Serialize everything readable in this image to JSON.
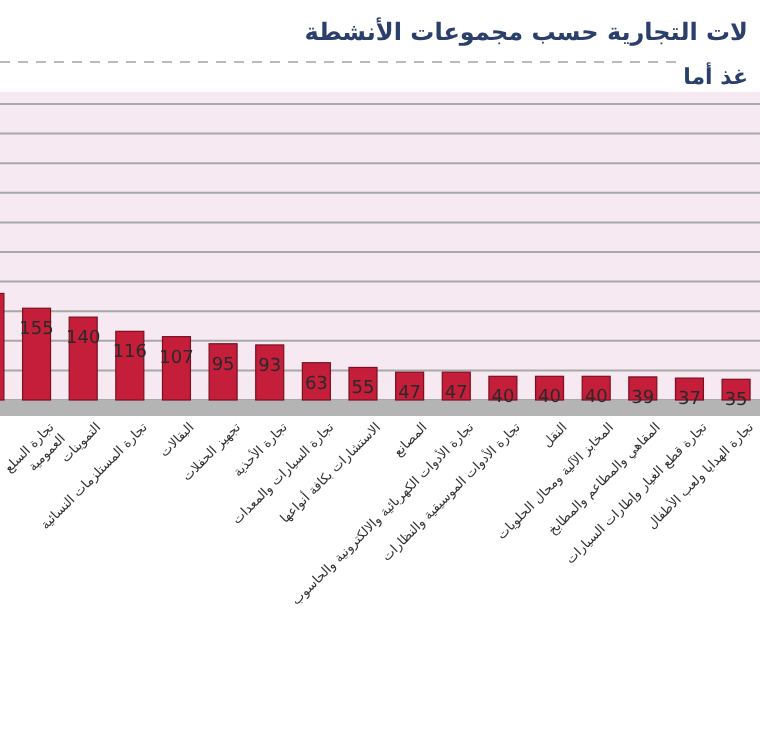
{
  "chart_data": {
    "type": "bar",
    "title": "لات التجارية حسب مجموعات الأنشطة",
    "subtitle": "غذ أما",
    "categories": [
      null,
      "تجارة السلع العمومية",
      "التموينات",
      "تجارة المستلزمات النسائية",
      "البقالات",
      "تجهيز الحفلات",
      "تجارة الأحذية",
      "تجارة السيارات والمعدات",
      "الاستشارات بكافة أنواعها",
      "المصانع",
      "تجارة الأدوات الكهربائية والالكترونية والحاسوب",
      "تجارة الأدوات الموسيقية والنظارات",
      "النقل",
      "المخابز الآلية ومحال الحلويات",
      "المقاهي والمطاعم والمطابخ",
      "تجارة قطع الغيار وإطارات السيارات",
      "تجارة الهدايا ولعب الأطفال"
    ],
    "values": [
      180,
      155,
      140,
      116,
      107,
      95,
      93,
      63,
      55,
      47,
      47,
      40,
      40,
      40,
      39,
      37,
      35
    ],
    "value_labels": [
      null,
      "155",
      "140",
      "116",
      "107",
      "95",
      "93",
      "63",
      "55",
      "47",
      "47",
      "40",
      "40",
      "40",
      "39",
      "37",
      "35"
    ],
    "color": "#c41e3a",
    "ylim": [
      0,
      500
    ],
    "yticks": [
      {
        "value": 0,
        "label": null
      },
      {
        "value": 50,
        "label": null
      },
      {
        "value": 100,
        "label": null
      },
      {
        "value": 150,
        "label": null
      },
      {
        "value": 200,
        "label": null
      },
      {
        "value": 250,
        "label": null
      },
      {
        "value": 300,
        "label": null
      },
      {
        "value": 350,
        "label": null
      },
      {
        "value": 400,
        "label": null
      },
      {
        "value": 450,
        "label": null
      },
      {
        "value": 500,
        "label": null
      }
    ],
    "grid": true,
    "tick_labels": "x"
  }
}
